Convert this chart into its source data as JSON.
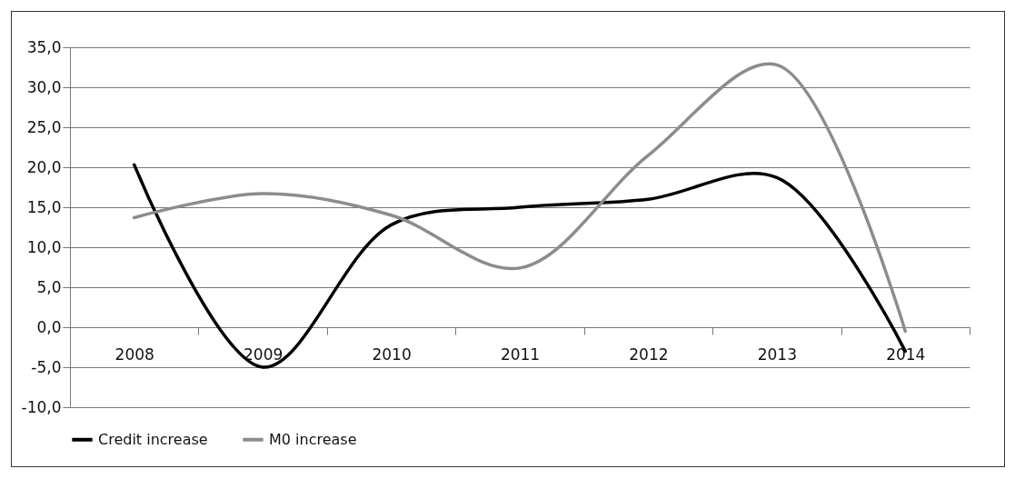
{
  "chart_data": {
    "type": "line",
    "categories": [
      "2008",
      "2009",
      "2010",
      "2011",
      "2012",
      "2013",
      "2014"
    ],
    "series": [
      {
        "name": "Credit increase",
        "color": "#000000",
        "values": [
          20.3,
          -5.0,
          12.8,
          15.0,
          16.0,
          18.7,
          -3.0
        ]
      },
      {
        "name": "M0 increase",
        "color": "#8c8c8c",
        "values": [
          13.7,
          16.7,
          14.0,
          7.4,
          21.5,
          32.8,
          -0.5
        ]
      }
    ],
    "ylim": [
      -10,
      35
    ],
    "yticks": [
      {
        "value": -10,
        "label": "-10,0"
      },
      {
        "value": -5,
        "label": "-5,0"
      },
      {
        "value": 0,
        "label": "0,0"
      },
      {
        "value": 5,
        "label": "5,0"
      },
      {
        "value": 10,
        "label": "10,0"
      },
      {
        "value": 15,
        "label": "15,0"
      },
      {
        "value": 20,
        "label": "20,0"
      },
      {
        "value": 25,
        "label": "25,0"
      },
      {
        "value": 30,
        "label": "30,0"
      },
      {
        "value": 35,
        "label": "35,0"
      }
    ],
    "grid": "y",
    "legend": "bottom",
    "marker": "none",
    "line_style": "solid"
  }
}
